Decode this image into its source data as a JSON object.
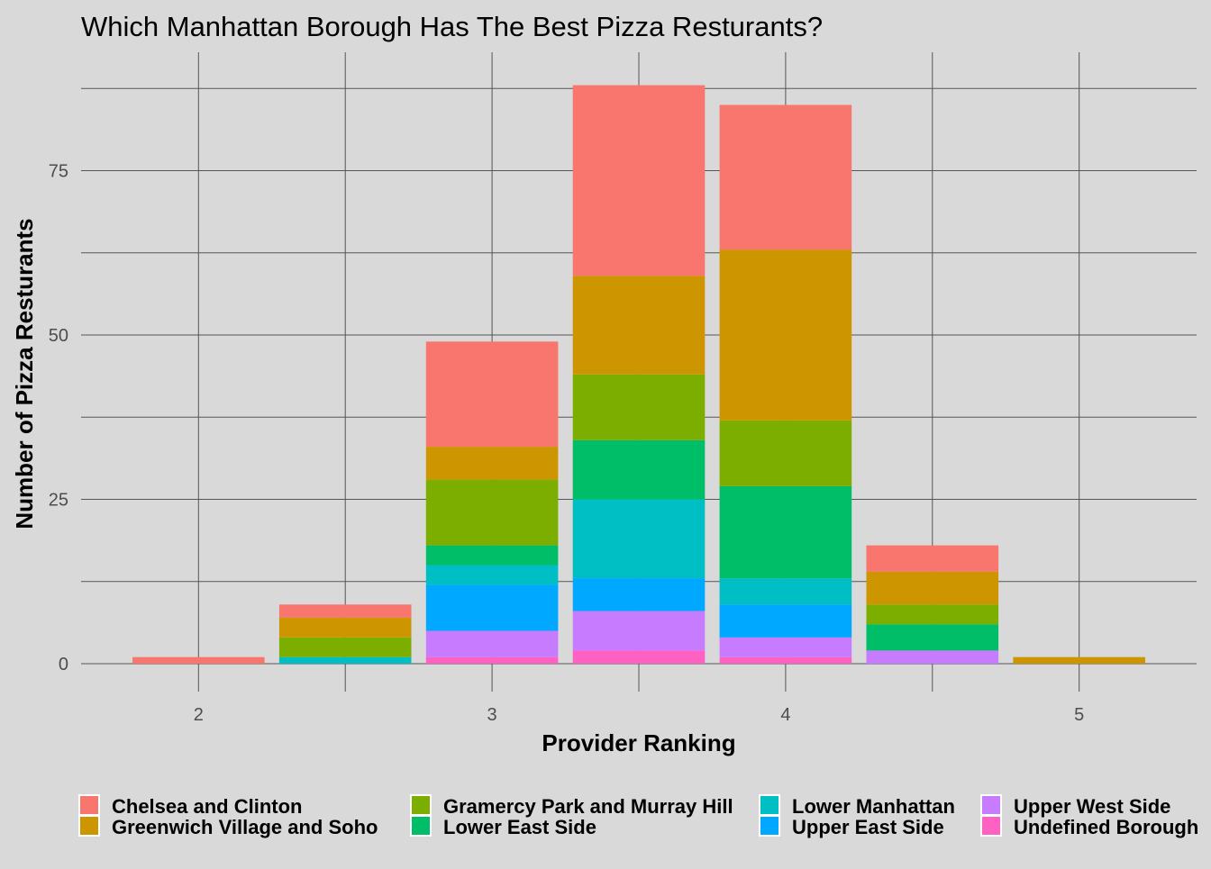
{
  "chart_data": {
    "type": "bar",
    "stacked": true,
    "title": "Which Manhattan Borough Has The Best Pizza Resturants?",
    "xlabel": "Provider Ranking",
    "ylabel": "Number of Pizza Resturants",
    "x": [
      2,
      2.5,
      3,
      3.5,
      4,
      4.5,
      5
    ],
    "x_ticks": [
      "2",
      "3",
      "4",
      "5"
    ],
    "y_ticks": [
      "0",
      "25",
      "50",
      "75"
    ],
    "xlim": [
      1.6,
      5.4
    ],
    "ylim": [
      0,
      90
    ],
    "grid": true,
    "legend_position": "bottom",
    "series": [
      {
        "name": "Undefined Borough",
        "color": "#FF61C3",
        "values": [
          0,
          0,
          1,
          2,
          1,
          0,
          0
        ]
      },
      {
        "name": "Upper West Side",
        "color": "#C77CFF",
        "values": [
          0,
          0,
          4,
          6,
          3,
          2,
          0
        ]
      },
      {
        "name": "Upper East Side",
        "color": "#00A9FF",
        "values": [
          0,
          0,
          7,
          5,
          5,
          0,
          0
        ]
      },
      {
        "name": "Lower Manhattan",
        "color": "#00BFC4",
        "values": [
          0,
          1,
          3,
          12,
          4,
          0,
          0
        ]
      },
      {
        "name": "Lower East Side",
        "color": "#00BE67",
        "values": [
          0,
          0,
          3,
          9,
          14,
          4,
          0
        ]
      },
      {
        "name": "Gramercy Park and Murray Hill",
        "color": "#7CAE00",
        "values": [
          0,
          3,
          10,
          10,
          10,
          3,
          0
        ]
      },
      {
        "name": "Greenwich Village and Soho",
        "color": "#CD9600",
        "values": [
          0,
          3,
          5,
          15,
          26,
          5,
          1
        ]
      },
      {
        "name": "Chelsea and Clinton",
        "color": "#F8766D",
        "values": [
          1,
          2,
          16,
          29,
          22,
          4,
          0
        ]
      }
    ],
    "legend_order": [
      "Chelsea and Clinton",
      "Greenwich Village and Soho",
      "Gramercy Park and Murray Hill",
      "Lower East Side",
      "Lower Manhattan",
      "Upper East Side",
      "Upper West Side",
      "Undefined Borough"
    ]
  }
}
